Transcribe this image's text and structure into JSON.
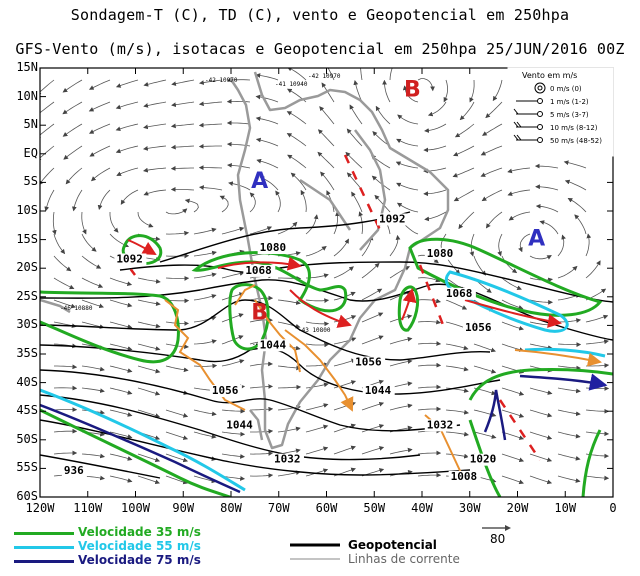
{
  "title_line1": "Sondagem-T (C), TD (C), vento e Geopotencial em 250hpa",
  "title_line2": "GFS-Vento (m/s), isotacas e Geopotencial em 250hpa 25/JUN/2016 00Z",
  "lat_labels": [
    "15N",
    "10N",
    "5N",
    "EQ",
    "5S",
    "10S",
    "15S",
    "20S",
    "25S",
    "30S",
    "35S",
    "40S",
    "45S",
    "50S",
    "55S",
    "60S"
  ],
  "lon_labels": [
    "120W",
    "110W",
    "100W",
    "90W",
    "80W",
    "70W",
    "60W",
    "50W",
    "40W",
    "30W",
    "20W",
    "10W",
    "0"
  ],
  "pressure_centers": [
    {
      "label": "A",
      "color": "#3030c0",
      "lon": -74,
      "lat": -6
    },
    {
      "label": "A",
      "color": "#3030c0",
      "lon": -16,
      "lat": -16
    },
    {
      "label": "B",
      "color": "#d02020",
      "lon": -42,
      "lat": 10
    },
    {
      "label": "B",
      "color": "#d02020",
      "lon": -74,
      "lat": -29
    }
  ],
  "contour_labels": [
    {
      "text": "1092",
      "lon": -49,
      "lat": -12
    },
    {
      "text": "1092",
      "lon": -104,
      "lat": -19
    },
    {
      "text": "1080",
      "lon": -74,
      "lat": -17
    },
    {
      "text": "1080",
      "lon": -39,
      "lat": -18
    },
    {
      "text": "1068",
      "lon": -77,
      "lat": -21
    },
    {
      "text": "1068",
      "lon": -35,
      "lat": -25
    },
    {
      "text": "1056",
      "lon": -31,
      "lat": -31
    },
    {
      "text": "1056",
      "lon": -54,
      "lat": -37
    },
    {
      "text": "1056",
      "lon": -84,
      "lat": -42
    },
    {
      "text": "1044",
      "lon": -74,
      "lat": -34
    },
    {
      "text": "1044",
      "lon": -52,
      "lat": -42
    },
    {
      "text": "1044",
      "lon": -81,
      "lat": -48
    },
    {
      "text": "1032",
      "lon": -39,
      "lat": -48
    },
    {
      "text": "1032",
      "lon": -71,
      "lat": -54
    },
    {
      "text": "1020",
      "lon": -30,
      "lat": -54
    },
    {
      "text": "1008",
      "lon": -34,
      "lat": -57
    },
    {
      "text": "936",
      "lon": -115,
      "lat": -56
    }
  ],
  "wind_legend": {
    "title": "Vento em m/s",
    "items": [
      "0 m/s (0)",
      "1 m/s (1-2)",
      "5 m/s (3-7)",
      "10 m/s (8-12)",
      "50 m/s (48-52)"
    ]
  },
  "legend": {
    "isotach35": {
      "label": "Velocidade 35  m/s",
      "color": "#22aa22"
    },
    "isotach55": {
      "label": "Velocidade 55  m/s",
      "color": "#22c8e8"
    },
    "isotach75": {
      "label": "Velocidade 75  m/s",
      "color": "#1a1a80"
    },
    "geopotential": "Geopotencial",
    "streamlines": "Linhas de corrente",
    "ref_vector": "80"
  }
}
